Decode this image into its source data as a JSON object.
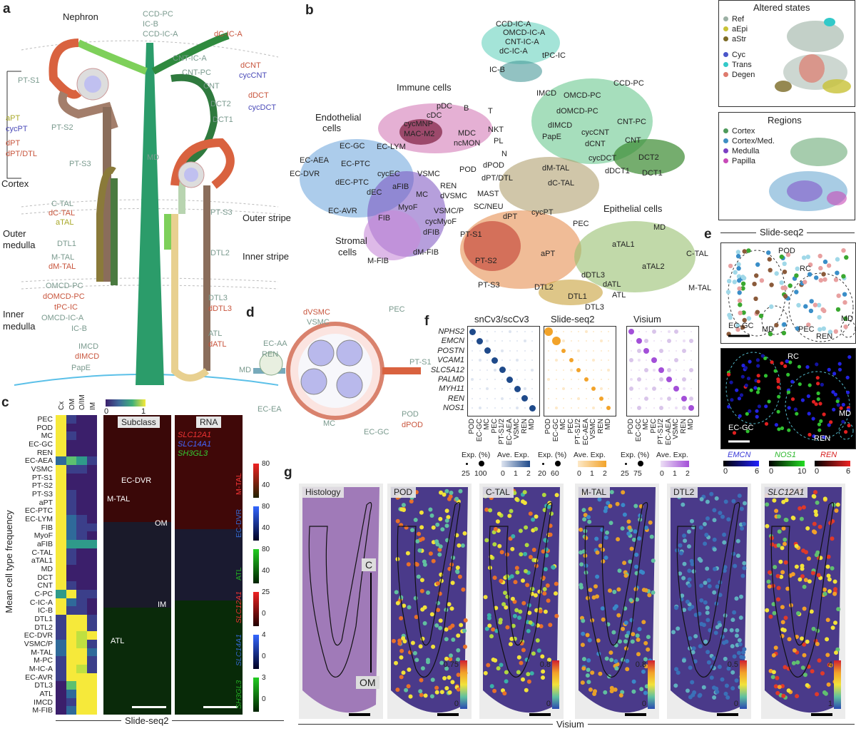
{
  "panels": {
    "a": "a",
    "b": "b",
    "c": "c",
    "d": "d",
    "e": "e",
    "f": "f",
    "g": "g"
  },
  "panel_a": {
    "title": "Nephron",
    "left": [
      "PT-S1",
      "aPT",
      "cycPT",
      "PT-S2",
      "dPT",
      "dPT/DTL",
      "PT-S3",
      "Cortex",
      "C-TAL",
      "dC-TAL",
      "aTAL",
      "Outer",
      "medulla",
      "DTL1",
      "M-TAL",
      "dM-TAL",
      "OMCD-PC",
      "dOMCD-PC",
      "tPC-IC",
      "OMCD-IC-A",
      "IC-B",
      "Inner",
      "medulla",
      "IMCD",
      "dIMCD",
      "PapE"
    ],
    "right": [
      "CCD-PC",
      "IC-B",
      "CCD-IC-A",
      "dC-IC-A",
      "CNT-IC-A",
      "CNT-PC",
      "CNT",
      "dCNT",
      "cycCNT",
      "DCT2",
      "DCT1",
      "dDCT",
      "cycDCT",
      "MD",
      "PT-S3",
      "Outer stripe",
      "DTL2",
      "Inner stripe",
      "DTL3",
      "dDTL3",
      "ATL",
      "dATL"
    ]
  },
  "panel_b": {
    "clusters": [
      "CCD-IC-A",
      "OMCD-IC-A",
      "CNT-IC-A",
      "dC-IC-A",
      "tPC-IC",
      "IC-B",
      "Immune cells",
      "pDC",
      "B",
      "T",
      "cDC",
      "cycMNP",
      "MAC-M2",
      "MDC",
      "NKT",
      "EC-LYM",
      "ncMON",
      "IMCD",
      "OMCD-PC",
      "CCD-PC",
      "dOMCD-PC",
      "CNT-PC",
      "dIMCD",
      "cycCNT",
      "CNT",
      "PapE",
      "dCNT",
      "DCT2",
      "Endothelial",
      "cells",
      "EC-GC",
      "EC-AEA",
      "EC-PTC",
      "EC-DVR",
      "cycEC",
      "dEC-PTC",
      "dEC",
      "EC-AVR",
      "PL",
      "N",
      "POD",
      "dPOD",
      "dPT/DTL",
      "dM-TAL",
      "dC-TAL",
      "cycDCT",
      "dDCT1",
      "DCT1",
      "VSMC",
      "REN",
      "MC",
      "dVSMC",
      "VSMC/P",
      "aFIB",
      "MyoF",
      "cycMyoF",
      "FIB",
      "dFIB",
      "dM-FIB",
      "M-FIB",
      "Stromal",
      "cells",
      "MAST",
      "SC/NEU",
      "dPT",
      "cycPT",
      "PEC",
      "Epithelial cells",
      "MD",
      "aTAL1",
      "aTAL2",
      "C-TAL",
      "M-TAL",
      "PT-S1",
      "PT-S2",
      "PT-S3",
      "aPT",
      "dDTL3",
      "dATL",
      "ATL",
      "DTL2",
      "DTL1",
      "DTL3"
    ]
  },
  "altered": {
    "title": "Altered states",
    "items": [
      {
        "label": "Ref",
        "color": "#9bb0a4"
      },
      {
        "label": "aEpi",
        "color": "#c8c236"
      },
      {
        "label": "aStr",
        "color": "#7b6a25"
      },
      {
        "label": "Cyc",
        "color": "#4a56c9"
      },
      {
        "label": "Trans",
        "color": "#33c9c9"
      },
      {
        "label": "Degen",
        "color": "#de7a6d"
      }
    ]
  },
  "regions": {
    "title": "Regions",
    "items": [
      {
        "label": "Cortex",
        "color": "#4e9a5b"
      },
      {
        "label": "Cortex/Med.",
        "color": "#3e8ec3"
      },
      {
        "label": "Medulla",
        "color": "#7b3fc3"
      },
      {
        "label": "Papilla",
        "color": "#c84ab8"
      }
    ]
  },
  "panel_c": {
    "cols": [
      "Cx",
      "OM",
      "O/IM",
      "IM"
    ],
    "colorbar": [
      "0",
      "1"
    ],
    "rows": [
      "PEC",
      "POD",
      "MC",
      "EC-GC",
      "REN",
      "EC-AEA",
      "VSMC",
      "PT-S1",
      "PT-S2",
      "PT-S3",
      "aPT",
      "EC-PTC",
      "EC-LYM",
      "FIB",
      "MyoF",
      "aFIB",
      "C-TAL",
      "aTAL1",
      "MD",
      "DCT",
      "CNT",
      "C-PC",
      "C-IC-A",
      "IC-B",
      "DTL1",
      "DTL2",
      "EC-DVR",
      "VSMC/P",
      "M-TAL",
      "M-PC",
      "M-IC-A",
      "EC-AVR",
      "DTL3",
      "ATL",
      "IMCD",
      "M-FIB"
    ],
    "ylabel": "Mean cell type frequency",
    "subclass_title": "Subclass",
    "rna_title": "RNA",
    "rna_genes": [
      "SLC12A1",
      "SLC14A1",
      "SH3GL3"
    ],
    "subclass_labels": [
      "EC-DVR",
      "M-TAL",
      "OM",
      "IM",
      "ATL"
    ],
    "bars": [
      {
        "label": "M-TAL",
        "ticks": [
          "80",
          "40"
        ]
      },
      {
        "label": "EC-DVR",
        "ticks": [
          "80",
          "40"
        ]
      },
      {
        "label": "ATL",
        "ticks": [
          "80",
          "40"
        ]
      },
      {
        "label": "SLC12A1",
        "ticks": [
          "25",
          "0"
        ]
      },
      {
        "label": "SLC14A1",
        "ticks": [
          "4",
          "0"
        ]
      },
      {
        "label": "SH3GL3",
        "ticks": [
          "3",
          "0"
        ]
      }
    ],
    "footer": "Slide-seq2"
  },
  "panel_d": {
    "labels": [
      "dVSMC",
      "VSMC",
      "EC-AA",
      "REN",
      "MD",
      "EC-EA",
      "MC",
      "EC-GC",
      "POD",
      "dPOD",
      "PEC",
      "PT-S1"
    ]
  },
  "panel_e": {
    "title": "Slide-seq2",
    "labels_top": [
      "POD",
      "RC",
      "EC-GC",
      "MD",
      "PEC",
      "REN",
      "MD"
    ],
    "labels_bottom": [
      "RC",
      "EC-GC",
      "MD",
      "REN"
    ],
    "genes": [
      {
        "name": "EMCN",
        "lo": "0",
        "hi": "6"
      },
      {
        "name": "NOS1",
        "lo": "0",
        "hi": "10"
      },
      {
        "name": "REN",
        "lo": "0",
        "hi": "6"
      }
    ]
  },
  "panel_f": {
    "titles": [
      "snCv3/scCv3",
      "Slide-seq2",
      "Visium"
    ],
    "genes": [
      "NPHS2",
      "EMCN",
      "POSTN",
      "VCAM1",
      "SLC5A12",
      "PALMD",
      "MYH11",
      "REN",
      "NOS1"
    ],
    "cols": [
      "POD",
      "EC-GC",
      "MC",
      "PEC",
      "PT-S1/2",
      "EC-AEA",
      "VSMC",
      "REN",
      "MD"
    ],
    "legends": [
      {
        "exp": [
          "25",
          "100"
        ],
        "ave": [
          "0",
          "1",
          "2"
        ]
      },
      {
        "exp": [
          "20",
          "60"
        ],
        "ave": [
          "0",
          "1",
          "2"
        ]
      },
      {
        "exp": [
          "25",
          "75"
        ],
        "ave": [
          "0",
          "1",
          "2"
        ]
      }
    ],
    "exp_label": "Exp. (%)",
    "ave_label": "Ave. Exp."
  },
  "panel_g": {
    "tiles": [
      {
        "title": "Histology",
        "max": "",
        "min": ""
      },
      {
        "title": "POD",
        "max": "0.75",
        "min": "0"
      },
      {
        "title": "C-TAL",
        "max": "0.8",
        "min": "0"
      },
      {
        "title": "M-TAL",
        "max": "0.8",
        "min": "0"
      },
      {
        "title": "DTL2",
        "max": "0.5",
        "min": "0"
      },
      {
        "title": "SLC12A1",
        "max": "4",
        "min": "1"
      }
    ],
    "hist_labels": [
      "C",
      "OM"
    ],
    "footer": "Visium"
  }
}
